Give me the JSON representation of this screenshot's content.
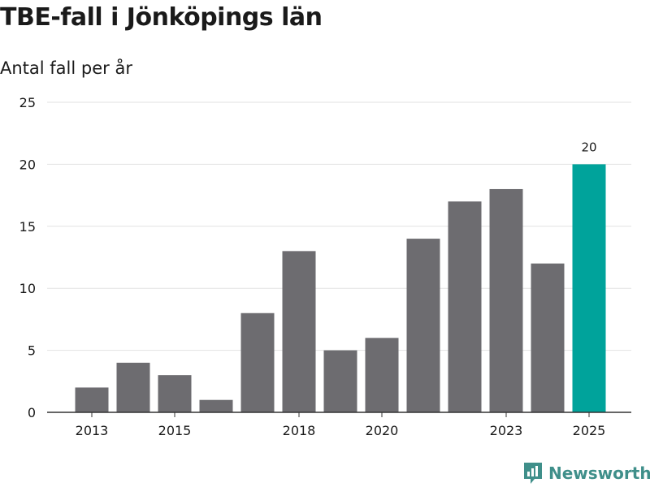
{
  "chart_data": {
    "type": "bar",
    "title": "TBE-fall i Jönköpings län",
    "subtitle": "Antal fall per år",
    "xlabel": "",
    "ylabel": "",
    "categories": [
      "2013",
      "2014",
      "2015",
      "2016",
      "2017",
      "2018",
      "2019",
      "2020",
      "2021",
      "2022",
      "2023",
      "2024",
      "2025"
    ],
    "values": [
      2,
      4,
      3,
      1,
      8,
      13,
      5,
      6,
      14,
      17,
      18,
      12,
      20
    ],
    "x_tick_labels": [
      "2013",
      "2015",
      "2018",
      "2020",
      "2023",
      "2025"
    ],
    "y_ticks": [
      0,
      5,
      10,
      15,
      20,
      25
    ],
    "ylim": [
      0,
      25
    ],
    "highlight": {
      "category": "2025",
      "label": "20"
    },
    "colors": {
      "bar": "#6d6c70",
      "highlight": "#00a39b",
      "grid": "#e2e2e2",
      "axis": "#333333"
    },
    "grid": true
  },
  "branding": {
    "name": "Newsworthy",
    "icon": "newsworthy-logo-icon",
    "color": "#3f8f8a"
  }
}
